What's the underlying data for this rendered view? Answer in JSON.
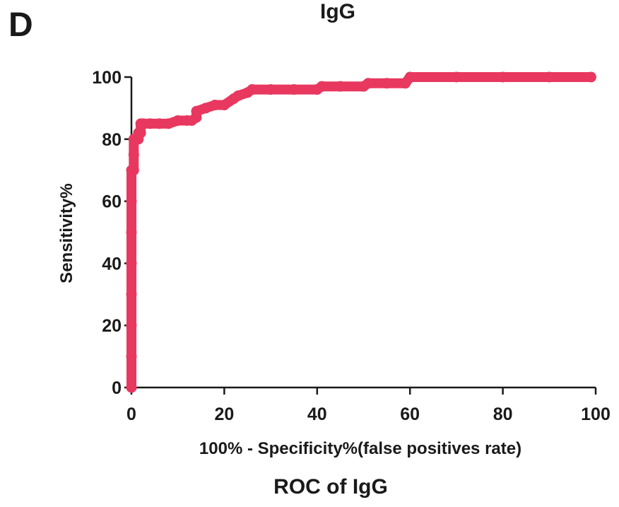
{
  "panel_label": "D",
  "caption": "ROC of IgG",
  "colors": {
    "curve": "#e8385f",
    "axis": "#1a1a1a"
  },
  "chart_data": {
    "type": "line",
    "title": "IgG",
    "xlabel": "100% - Specificity%(false positives rate)",
    "ylabel": "Sensitivity%",
    "xlim": [
      0,
      100
    ],
    "ylim": [
      0,
      100
    ],
    "xticks": [
      0,
      20,
      40,
      60,
      80,
      100
    ],
    "yticks": [
      0,
      20,
      40,
      60,
      80,
      100
    ],
    "grid": false,
    "legend": "none",
    "series": [
      {
        "color": "#e8385f",
        "x": [
          0,
          0,
          0,
          0,
          0,
          0,
          0,
          0,
          0.5,
          0.5,
          0.5,
          1,
          1.5,
          1.5,
          2,
          2,
          2.5,
          4,
          6,
          8,
          10,
          12,
          13,
          14,
          14,
          16,
          18,
          20,
          22,
          23,
          25,
          26,
          30,
          35,
          40,
          41,
          45,
          50,
          51,
          55,
          59,
          60,
          70,
          80,
          90,
          99
        ],
        "y": [
          0,
          10,
          20,
          30,
          40,
          50,
          60,
          70,
          70,
          75,
          80,
          80,
          80,
          82,
          82,
          85,
          85,
          85,
          85,
          85,
          86,
          86,
          86,
          87,
          89,
          90,
          91,
          91,
          93,
          94,
          95,
          96,
          96,
          96,
          96,
          97,
          97,
          97,
          98,
          98,
          98,
          100,
          100,
          100,
          100,
          100
        ]
      }
    ]
  }
}
